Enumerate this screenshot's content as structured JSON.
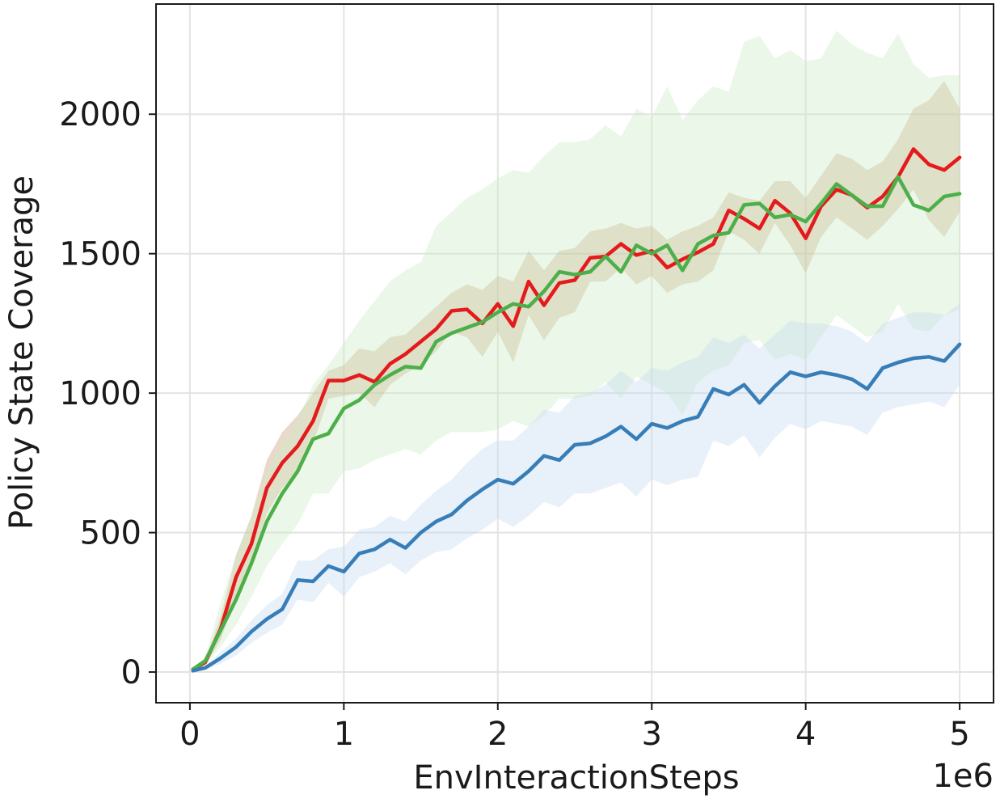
{
  "chart_data": {
    "type": "line",
    "title": "",
    "xlabel": "EnvInteractionSteps",
    "ylabel": "Policy State Coverage",
    "x_multiplier_label": "1e6",
    "x_unit": 1000000,
    "xlim": [
      -0.22,
      5.22
    ],
    "ylim": [
      -110,
      2395
    ],
    "xticks": [
      0,
      1,
      2,
      3,
      4,
      5
    ],
    "xtick_labels": [
      "0",
      "1",
      "2",
      "3",
      "4",
      "5"
    ],
    "yticks": [
      0,
      500,
      1000,
      1500,
      2000
    ],
    "ytick_labels": [
      "0",
      "500",
      "1000",
      "1500",
      "2000"
    ],
    "grid": true,
    "legend": "none",
    "x": [
      0.02,
      0.1,
      0.2,
      0.3,
      0.4,
      0.5,
      0.6,
      0.7,
      0.8,
      0.9,
      1.0,
      1.1,
      1.2,
      1.3,
      1.4,
      1.5,
      1.6,
      1.7,
      1.8,
      1.9,
      2.0,
      2.1,
      2.2,
      2.3,
      2.4,
      2.5,
      2.6,
      2.7,
      2.8,
      2.9,
      3.0,
      3.1,
      3.2,
      3.3,
      3.4,
      3.5,
      3.6,
      3.7,
      3.8,
      3.9,
      4.0,
      4.1,
      4.2,
      4.3,
      4.4,
      4.5,
      4.6,
      4.7,
      4.8,
      4.9,
      5.0
    ],
    "series": [
      {
        "color": "#e41a1c",
        "band_color": "#c8a07a",
        "values": [
          10,
          35,
          155,
          340,
          460,
          660,
          750,
          810,
          900,
          1045,
          1045,
          1065,
          1040,
          1105,
          1140,
          1185,
          1230,
          1295,
          1300,
          1250,
          1320,
          1240,
          1400,
          1315,
          1395,
          1405,
          1485,
          1490,
          1535,
          1495,
          1510,
          1450,
          1480,
          1505,
          1535,
          1655,
          1625,
          1590,
          1690,
          1645,
          1555,
          1670,
          1730,
          1710,
          1665,
          1705,
          1775,
          1875,
          1820,
          1800,
          1845
        ],
        "upper": [
          15,
          45,
          200,
          420,
          560,
          760,
          860,
          920,
          1000,
          1080,
          1100,
          1160,
          1150,
          1200,
          1210,
          1260,
          1310,
          1360,
          1390,
          1370,
          1420,
          1400,
          1510,
          1440,
          1510,
          1520,
          1580,
          1590,
          1610,
          1590,
          1600,
          1550,
          1580,
          1600,
          1630,
          1720,
          1700,
          1690,
          1760,
          1760,
          1700,
          1780,
          1860,
          1840,
          1800,
          1830,
          1910,
          2020,
          2050,
          2120,
          2020
        ],
        "lower": [
          5,
          25,
          115,
          270,
          390,
          570,
          660,
          720,
          820,
          980,
          990,
          1000,
          950,
          1030,
          1070,
          1100,
          1150,
          1220,
          1200,
          1130,
          1220,
          1110,
          1280,
          1190,
          1270,
          1290,
          1400,
          1400,
          1450,
          1390,
          1420,
          1360,
          1390,
          1400,
          1440,
          1580,
          1550,
          1500,
          1610,
          1530,
          1430,
          1560,
          1630,
          1590,
          1550,
          1600,
          1660,
          1730,
          1620,
          1560,
          1650
        ]
      },
      {
        "color": "#4daf4a",
        "band_color": "#ccebc5",
        "values": [
          10,
          40,
          150,
          260,
          390,
          540,
          640,
          720,
          835,
          855,
          945,
          975,
          1030,
          1065,
          1095,
          1090,
          1185,
          1215,
          1235,
          1255,
          1290,
          1320,
          1310,
          1365,
          1435,
          1425,
          1435,
          1490,
          1435,
          1530,
          1500,
          1530,
          1440,
          1535,
          1565,
          1575,
          1675,
          1680,
          1630,
          1640,
          1615,
          1680,
          1750,
          1710,
          1670,
          1670,
          1775,
          1675,
          1655,
          1705,
          1715
        ],
        "upper": [
          15,
          55,
          250,
          420,
          560,
          720,
          820,
          900,
          1030,
          1100,
          1180,
          1260,
          1330,
          1400,
          1440,
          1470,
          1600,
          1650,
          1700,
          1730,
          1770,
          1800,
          1790,
          1850,
          1900,
          1900,
          1910,
          1960,
          1920,
          2020,
          1990,
          2100,
          1980,
          2050,
          2100,
          2080,
          2260,
          2280,
          2200,
          2230,
          2190,
          2200,
          2300,
          2250,
          2220,
          2200,
          2290,
          2180,
          2130,
          2140,
          2140
        ],
        "lower": [
          5,
          25,
          90,
          170,
          270,
          380,
          460,
          530,
          640,
          640,
          720,
          730,
          760,
          780,
          800,
          780,
          830,
          860,
          860,
          860,
          870,
          900,
          880,
          920,
          980,
          980,
          990,
          1040,
          980,
          1060,
          1030,
          1000,
          920,
          1040,
          1080,
          1100,
          1180,
          1190,
          1120,
          1140,
          1120,
          1200,
          1280,
          1240,
          1200,
          1220,
          1320,
          1230,
          1220,
          1280,
          1300
        ]
      },
      {
        "color": "#377eb8",
        "band_color": "#c6dbef",
        "values": [
          5,
          15,
          50,
          90,
          145,
          190,
          225,
          330,
          325,
          380,
          360,
          425,
          440,
          475,
          445,
          500,
          540,
          565,
          615,
          655,
          690,
          675,
          720,
          775,
          760,
          815,
          820,
          845,
          880,
          835,
          890,
          875,
          900,
          915,
          1015,
          995,
          1030,
          965,
          1025,
          1075,
          1060,
          1075,
          1065,
          1050,
          1015,
          1090,
          1110,
          1125,
          1130,
          1115,
          1175
        ],
        "upper": [
          8,
          22,
          70,
          120,
          185,
          240,
          280,
          400,
          400,
          440,
          450,
          510,
          520,
          560,
          540,
          600,
          650,
          690,
          750,
          800,
          830,
          830,
          880,
          940,
          930,
          990,
          1000,
          1030,
          1080,
          1040,
          1090,
          1080,
          1110,
          1130,
          1200,
          1180,
          1210,
          1160,
          1210,
          1260,
          1250,
          1250,
          1240,
          1220,
          1180,
          1250,
          1270,
          1290,
          1290,
          1280,
          1320
        ],
        "lower": [
          2,
          8,
          30,
          60,
          105,
          140,
          170,
          260,
          250,
          320,
          270,
          340,
          360,
          390,
          350,
          400,
          430,
          440,
          480,
          510,
          550,
          520,
          560,
          610,
          590,
          640,
          640,
          660,
          680,
          630,
          690,
          670,
          690,
          700,
          830,
          810,
          850,
          770,
          840,
          890,
          870,
          900,
          890,
          880,
          850,
          930,
          950,
          960,
          970,
          950,
          1030
        ]
      }
    ]
  }
}
